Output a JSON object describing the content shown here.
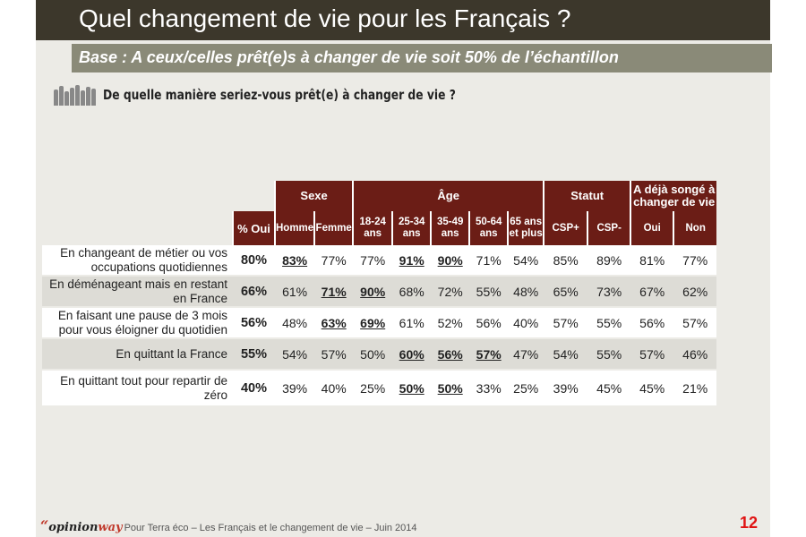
{
  "header": {
    "title": "Quel changement de vie pour les Français ?",
    "subtitle": "Base : A ceux/celles prêt(e)s à changer de vie soit 50% de l’échantillon",
    "question": "De quelle manière seriez-vous prêt(e) à changer de vie ?"
  },
  "table": {
    "groups": [
      "Sexe",
      "Âge",
      "Statut",
      "A déjà songé à changer de vie"
    ],
    "columns": [
      "% Oui",
      "Homme",
      "Femme",
      "18-24 ans",
      "25-34 ans",
      "35-49 ans",
      "50-64 ans",
      "65 ans et plus",
      "CSP+",
      "CSP-",
      "Oui",
      "Non"
    ],
    "rows": [
      {
        "label": "En changeant de métier ou vos occupations quotidiennes",
        "values": [
          "80%",
          "83%",
          "77%",
          "77%",
          "91%",
          "90%",
          "71%",
          "54%",
          "85%",
          "89%",
          "81%",
          "77%"
        ],
        "highlight": [
          false,
          true,
          false,
          false,
          true,
          true,
          false,
          false,
          false,
          false,
          false,
          false
        ]
      },
      {
        "label": "En déménageant mais en restant en France",
        "values": [
          "66%",
          "61%",
          "71%",
          "90%",
          "68%",
          "72%",
          "55%",
          "48%",
          "65%",
          "73%",
          "67%",
          "62%"
        ],
        "highlight": [
          false,
          false,
          true,
          true,
          false,
          false,
          false,
          false,
          false,
          false,
          false,
          false
        ]
      },
      {
        "label": "En faisant une pause de 3 mois pour vous éloigner du quotidien",
        "values": [
          "56%",
          "48%",
          "63%",
          "69%",
          "61%",
          "52%",
          "56%",
          "40%",
          "57%",
          "55%",
          "56%",
          "57%"
        ],
        "highlight": [
          false,
          false,
          true,
          true,
          false,
          false,
          false,
          false,
          false,
          false,
          false,
          false
        ]
      },
      {
        "label": "En quittant la France",
        "values": [
          "55%",
          "54%",
          "57%",
          "50%",
          "60%",
          "56%",
          "57%",
          "47%",
          "54%",
          "55%",
          "57%",
          "46%"
        ],
        "highlight": [
          false,
          false,
          false,
          false,
          true,
          true,
          true,
          false,
          false,
          false,
          false,
          false
        ]
      },
      {
        "label": "En quittant tout pour repartir de zéro",
        "values": [
          "40%",
          "39%",
          "40%",
          "25%",
          "50%",
          "50%",
          "33%",
          "25%",
          "39%",
          "45%",
          "45%",
          "21%"
        ],
        "highlight": [
          false,
          false,
          false,
          false,
          true,
          true,
          false,
          false,
          false,
          false,
          false,
          false
        ]
      }
    ]
  },
  "footer": {
    "logo_quote": "“",
    "logo_opinion": "opinion",
    "logo_way": "way",
    "text": "Pour Terra éco – Les Français et le changement de vie – Juin 2014",
    "page_number": "12"
  },
  "colors": {
    "title_bar": "#3c372b",
    "subtitle_bar": "#8a8a78",
    "header_cell": "#6b1d16",
    "page_number": "#e01414"
  }
}
